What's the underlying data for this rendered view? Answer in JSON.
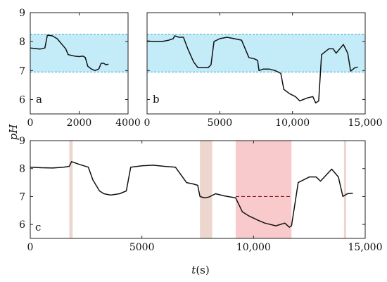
{
  "colors": {
    "band": "#c4ecf8",
    "band_border": "#2aa6cf",
    "red_region": "#f7c4c6",
    "tan_region": "#e9cfc6",
    "line": "#111111",
    "dashed": "#8a1a1a"
  },
  "chart_data": [
    {
      "panel": "a",
      "type": "line",
      "xlim": [
        0,
        4000
      ],
      "ylim": [
        5.5,
        9
      ],
      "xticks": [
        0,
        2000,
        4000
      ],
      "xtick_labels": [
        "0",
        "2000",
        "4000"
      ],
      "yticks": [
        6,
        7,
        8,
        9
      ],
      "ytick_labels": [
        "6",
        "7",
        "8",
        "9"
      ],
      "band": [
        6.95,
        8.25
      ],
      "series": [
        {
          "x": [
            0,
            200,
            400,
            600,
            700,
            900,
            1100,
            1200,
            1350,
            1450,
            1550,
            1700,
            1800,
            2000,
            2150,
            2250,
            2350,
            2500,
            2650,
            2800,
            2900,
            3000,
            3100,
            3200
          ],
          "y": [
            7.78,
            7.76,
            7.74,
            7.78,
            8.22,
            8.2,
            8.1,
            8.0,
            7.85,
            7.75,
            7.55,
            7.52,
            7.5,
            7.48,
            7.5,
            7.45,
            7.15,
            7.05,
            7.0,
            7.05,
            7.25,
            7.25,
            7.2,
            7.22
          ]
        }
      ]
    },
    {
      "panel": "b",
      "type": "line",
      "xlim": [
        0,
        15000
      ],
      "ylim": [
        5.5,
        9
      ],
      "xticks": [
        0,
        5000,
        10000,
        15000
      ],
      "xtick_labels": [
        "0",
        "5000",
        "10,000",
        "15,000"
      ],
      "band": [
        6.95,
        8.25
      ],
      "series": [
        {
          "x": [
            0,
            500,
            1000,
            1500,
            1800,
            1900,
            2200,
            2500,
            2800,
            3200,
            3500,
            3800,
            4200,
            4400,
            4600,
            5000,
            5500,
            6000,
            6500,
            7000,
            7400,
            7600,
            7700,
            8000,
            8400,
            8800,
            9000,
            9200,
            9400,
            9800,
            10200,
            10500,
            11000,
            11400,
            11600,
            11800,
            12000,
            12500,
            12800,
            13000,
            13500,
            13800,
            14000,
            14300,
            14500
          ],
          "y": [
            8.02,
            8.0,
            8.0,
            8.05,
            8.1,
            8.2,
            8.15,
            8.15,
            7.75,
            7.3,
            7.1,
            7.1,
            7.1,
            7.2,
            8.0,
            8.1,
            8.15,
            8.1,
            8.05,
            7.45,
            7.4,
            7.35,
            7.0,
            7.05,
            7.05,
            7.0,
            6.95,
            6.9,
            6.35,
            6.2,
            6.1,
            5.95,
            6.05,
            6.1,
            5.88,
            5.95,
            7.55,
            7.75,
            7.75,
            7.6,
            7.9,
            7.6,
            6.98,
            7.1,
            7.12
          ]
        }
      ]
    },
    {
      "panel": "c",
      "type": "line",
      "xlim": [
        0,
        15000
      ],
      "ylim": [
        5.5,
        9
      ],
      "xticks": [
        0,
        5000,
        10000,
        15000
      ],
      "xtick_labels": [
        "0",
        "5000",
        "10,000",
        "15,000"
      ],
      "yticks": [
        6,
        7,
        8,
        9
      ],
      "ytick_labels": [
        "6",
        "7",
        "8",
        "9"
      ],
      "xlabel": "t(s)",
      "ylabel": "pH",
      "regions": [
        {
          "x0": 1750,
          "x1": 1900,
          "kind": "tan"
        },
        {
          "x0": 7600,
          "x1": 8150,
          "kind": "tan"
        },
        {
          "x0": 9200,
          "x1": 11700,
          "kind": "red"
        },
        {
          "x0": 14050,
          "x1": 14150,
          "kind": "tan"
        }
      ],
      "dashed": {
        "x": [
          9200,
          11700
        ],
        "y": [
          7.0,
          7.0
        ]
      },
      "series": [
        {
          "x": [
            0,
            500,
            1000,
            1500,
            1750,
            1850,
            2200,
            2600,
            2800,
            3100,
            3300,
            3600,
            4000,
            4300,
            4500,
            5000,
            5500,
            6000,
            6500,
            7000,
            7300,
            7500,
            7600,
            7800,
            8000,
            8300,
            8700,
            9000,
            9200,
            9500,
            9800,
            10200,
            10500,
            11000,
            11400,
            11600,
            11700,
            12000,
            12500,
            12800,
            13000,
            13500,
            13800,
            14000,
            14200,
            14450
          ],
          "y": [
            8.05,
            8.03,
            8.02,
            8.05,
            8.08,
            8.25,
            8.15,
            8.05,
            7.6,
            7.2,
            7.1,
            7.05,
            7.1,
            7.2,
            8.05,
            8.1,
            8.12,
            8.08,
            8.05,
            7.5,
            7.45,
            7.4,
            7.0,
            6.95,
            6.98,
            7.1,
            7.02,
            6.98,
            6.95,
            6.45,
            6.3,
            6.15,
            6.05,
            5.95,
            6.05,
            5.9,
            5.95,
            7.5,
            7.7,
            7.7,
            7.55,
            7.98,
            7.7,
            7.0,
            7.1,
            7.12
          ]
        }
      ]
    }
  ],
  "labels": {
    "panel_a": "a",
    "panel_b": "b",
    "panel_c": "c",
    "ylabel": "pH",
    "xlabel_t": "t",
    "xlabel_unit": "(s)"
  }
}
